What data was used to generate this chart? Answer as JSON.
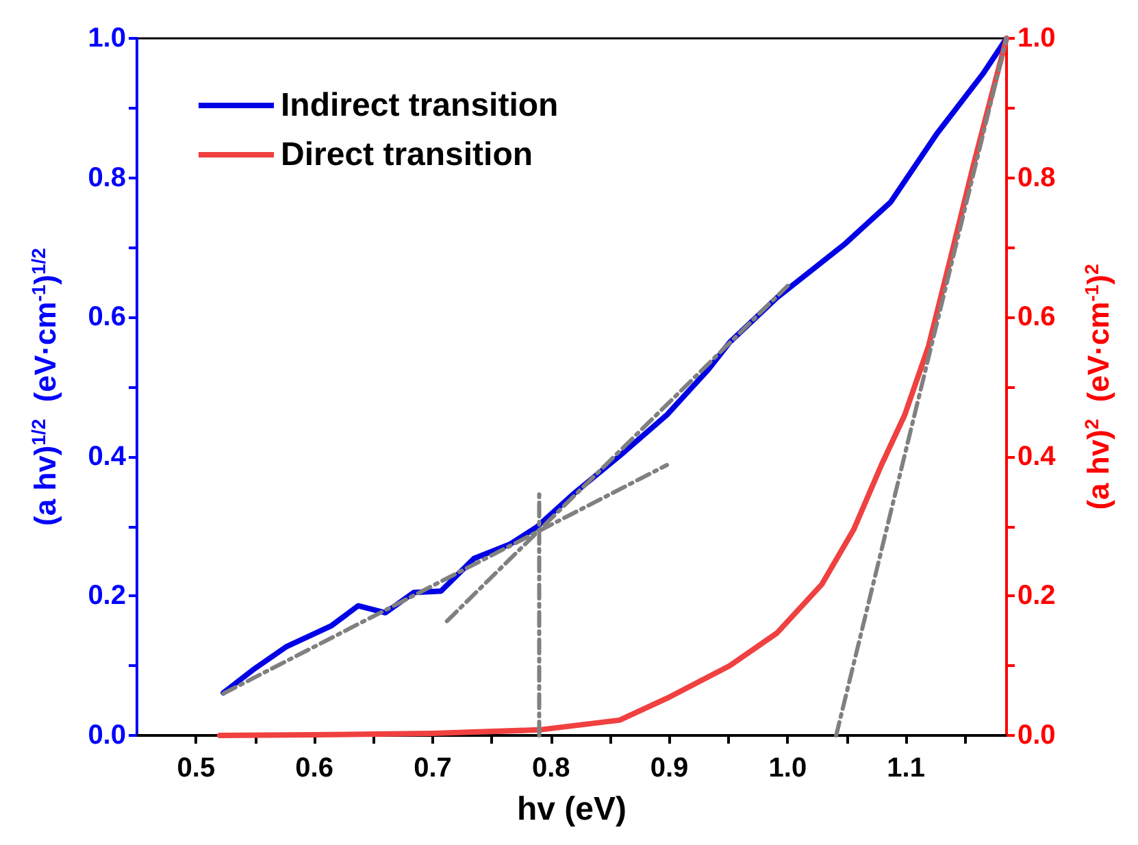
{
  "chart_data": {
    "type": "line",
    "xlabel": "hv (eV)",
    "ylabel": "(a hv)$^{1/2}$  (eV·cm$^{-1}$)$^{1/2}$",
    "y2label": "(a hv)$^{2}$  (eV·cm$^{-1}$)$^{2}$",
    "xlim": [
      0.45,
      1.185
    ],
    "ylim": [
      0,
      1
    ],
    "y2lim": [
      0,
      1
    ],
    "xticks": [
      {
        "value": 0.5,
        "label": "0.5"
      },
      {
        "value": 0.55,
        "label": null
      },
      {
        "value": 0.6,
        "label": "0.6"
      },
      {
        "value": 0.65,
        "label": null
      },
      {
        "value": 0.7,
        "label": "0.7"
      },
      {
        "value": 0.75,
        "label": null
      },
      {
        "value": 0.8,
        "label": "0.8"
      },
      {
        "value": 0.85,
        "label": null
      },
      {
        "value": 0.9,
        "label": "0.9"
      },
      {
        "value": 0.95,
        "label": null
      },
      {
        "value": 1.0,
        "label": "1.0"
      },
      {
        "value": 1.05,
        "label": null
      },
      {
        "value": 1.1,
        "label": "1.1"
      },
      {
        "value": 1.15,
        "label": null
      }
    ],
    "yticks": [
      {
        "value": 0,
        "label": "0.0"
      },
      {
        "value": 0.1,
        "label": null
      },
      {
        "value": 0.2,
        "label": "0.2"
      },
      {
        "value": 0.3,
        "label": null
      },
      {
        "value": 0.4,
        "label": "0.4"
      },
      {
        "value": 0.5,
        "label": null
      },
      {
        "value": 0.6,
        "label": "0.6"
      },
      {
        "value": 0.7,
        "label": null
      },
      {
        "value": 0.8,
        "label": "0.8"
      },
      {
        "value": 0.9,
        "label": null
      },
      {
        "value": 1.0,
        "label": "1.0"
      }
    ],
    "y2ticks": [
      {
        "value": 0,
        "label": "0.0"
      },
      {
        "value": 0.1,
        "label": null
      },
      {
        "value": 0.2,
        "label": "0.2"
      },
      {
        "value": 0.3,
        "label": null
      },
      {
        "value": 0.4,
        "label": "0.4"
      },
      {
        "value": 0.5,
        "label": null
      },
      {
        "value": 0.6,
        "label": "0.6"
      },
      {
        "value": 0.7,
        "label": null
      },
      {
        "value": 0.8,
        "label": "0.8"
      },
      {
        "value": 0.9,
        "label": null
      },
      {
        "value": 1.0,
        "label": "1.0"
      }
    ],
    "legend": "top left",
    "grid": false,
    "marker": "none",
    "series": [
      {
        "name": "Indirect transition",
        "color": "#0000e6",
        "x": [
          0.523,
          0.548,
          0.576,
          0.614,
          0.637,
          0.66,
          0.684,
          0.707,
          0.735,
          0.765,
          0.788,
          0.82,
          0.858,
          0.898,
          0.933,
          0.951,
          0.991,
          1.049,
          1.087,
          1.126,
          1.165,
          1.185
        ],
        "values": [
          0.061,
          0.094,
          0.127,
          0.157,
          0.186,
          0.176,
          0.205,
          0.207,
          0.254,
          0.274,
          0.299,
          0.348,
          0.401,
          0.46,
          0.525,
          0.564,
          0.628,
          0.706,
          0.765,
          0.863,
          0.949,
          1.0
        ]
      },
      {
        "name": "Direct transition",
        "color": "#f04040",
        "axis": "y2",
        "x": [
          0.52,
          0.6,
          0.7,
          0.79,
          0.858,
          0.9,
          0.951,
          0.991,
          1.029,
          1.056,
          1.079,
          1.099,
          1.119,
          1.138,
          1.157,
          1.172,
          1.185
        ],
        "values": [
          0,
          0.001,
          0.003,
          0.008,
          0.022,
          0.055,
          0.1,
          0.147,
          0.217,
          0.296,
          0.387,
          0.46,
          0.558,
          0.687,
          0.818,
          0.916,
          1.0
        ]
      },
      {
        "color": "#808080",
        "line_style": "dashed",
        "x": [
          0.523,
          0.898
        ],
        "values": [
          0.06,
          0.388
        ]
      },
      {
        "color": "#808080",
        "line_style": "dashed",
        "x": [
          0.712,
          1.0
        ],
        "values": [
          0.164,
          0.645
        ]
      },
      {
        "color": "#808080",
        "line_style": "dashed",
        "x": [
          0.79,
          0.79
        ],
        "values": [
          0,
          0.352
        ]
      },
      {
        "color": "#808080",
        "line_style": "dashed",
        "axis": "y2",
        "x": [
          1.041,
          1.185
        ],
        "values": [
          0,
          1.0
        ]
      }
    ]
  }
}
